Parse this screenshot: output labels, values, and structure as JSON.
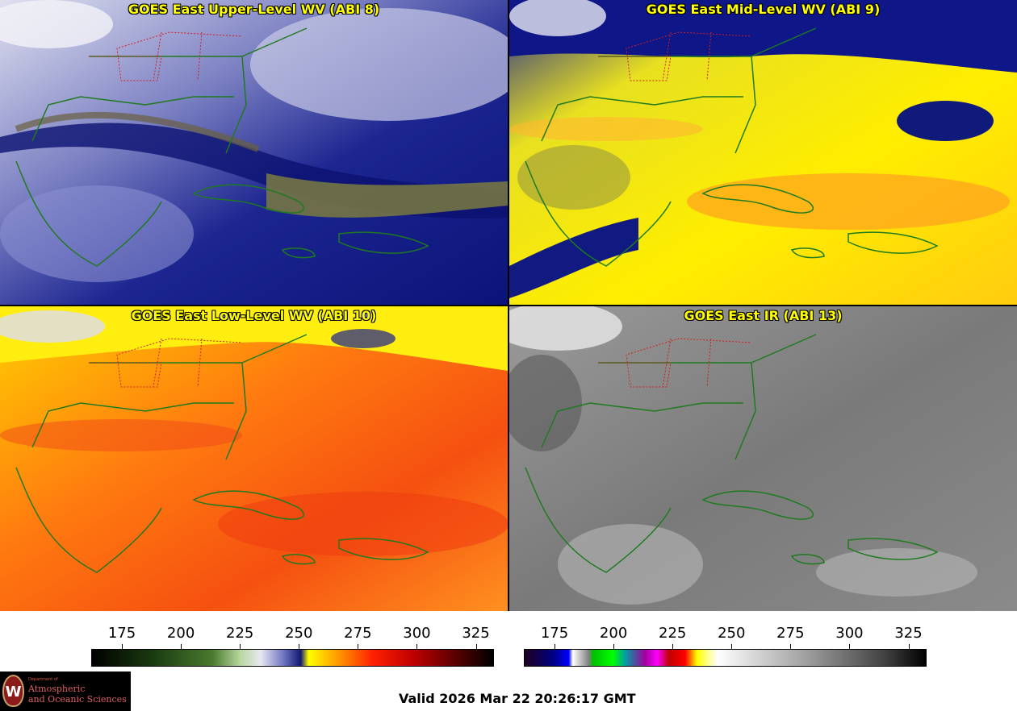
{
  "panels": [
    {
      "title": "GOES East Upper-Level WV (ABI 8)",
      "colormap": "wv"
    },
    {
      "title": "GOES East Mid-Level WV (ABI 9)",
      "colormap": "wv"
    },
    {
      "title": "GOES East Low-Level WV (ABI 10)",
      "colormap": "wv"
    },
    {
      "title": "GOES East IR (ABI 13)",
      "colormap": "ir"
    }
  ],
  "colorbars": {
    "wv": {
      "ticks": [
        "175",
        "200",
        "225",
        "250",
        "275",
        "300",
        "325"
      ],
      "range": [
        162,
        332
      ]
    },
    "ir": {
      "ticks": [
        "175",
        "200",
        "225",
        "250",
        "275",
        "300",
        "325"
      ],
      "range": [
        162,
        332
      ]
    }
  },
  "colors": {
    "title_text": "#ffff00",
    "coastline": "#2a8a2a",
    "state_borders": "#d02020"
  },
  "valid_time": "Valid 2026 Mar 22 20:26:17 GMT",
  "logo": {
    "department": "Department of",
    "line1": "Atmospheric",
    "line2": "and Oceanic Sciences",
    "seal_letter": "W"
  }
}
